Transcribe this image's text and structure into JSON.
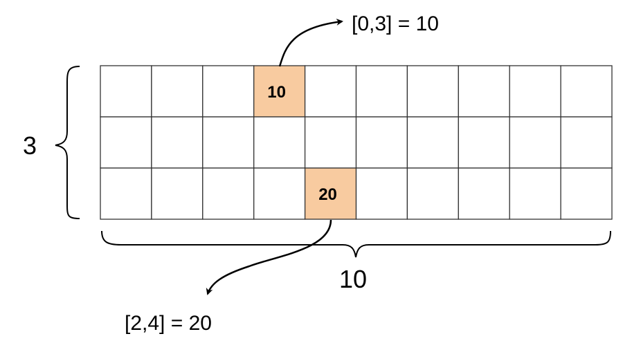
{
  "grid": {
    "rows": 3,
    "cols": 10,
    "highlight_color": "#F8CBA0",
    "cells": [
      {
        "row": 0,
        "col": 3,
        "value": "10"
      },
      {
        "row": 2,
        "col": 4,
        "value": "20"
      }
    ]
  },
  "labels": {
    "rows_count": "3",
    "cols_count": "10",
    "top_annotation": "[0,3] = 10",
    "bottom_annotation": "[2,4] = 20"
  }
}
